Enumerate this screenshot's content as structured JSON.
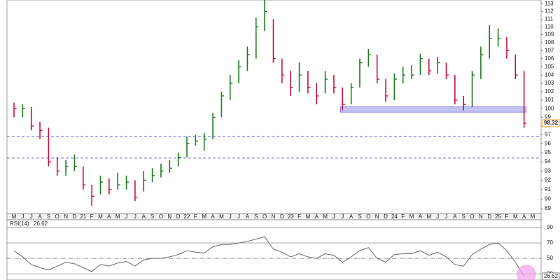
{
  "chart_data": [
    {
      "type": "ohlc",
      "log": true,
      "categories": [
        "M",
        "J",
        "J",
        "A",
        "S",
        "O",
        "N",
        "D",
        "21",
        "F",
        "M",
        "A",
        "M",
        "J",
        "J",
        "A",
        "S",
        "O",
        "N",
        "D",
        "22",
        "F",
        "M",
        "A",
        "M",
        "J",
        "J",
        "A",
        "S",
        "O",
        "N",
        "D",
        "23",
        "F",
        "M",
        "A",
        "M",
        "J",
        "J",
        "A",
        "S",
        "O",
        "N",
        "D",
        "24",
        "F",
        "M",
        "A",
        "M",
        "J",
        "J",
        "A",
        "S",
        "O",
        "N",
        "D",
        "25",
        "F",
        "M",
        "A",
        "M"
      ],
      "high": [
        100.7,
        100.5,
        100.2,
        98.5,
        97.8,
        94.5,
        94.2,
        94.8,
        93.5,
        91.5,
        92.5,
        92.2,
        92.8,
        92.5,
        92,
        93,
        93.3,
        93.8,
        94.2,
        95,
        96.8,
        97,
        97.2,
        99.5,
        102,
        104,
        105.8,
        107.5,
        111.2,
        113.5,
        111,
        106,
        104.5,
        105.5,
        104.5,
        103,
        104.5,
        104,
        102.5,
        103,
        106,
        107.2,
        106.5,
        103.5,
        104.2,
        105,
        105.2,
        106.6,
        106,
        106.2,
        105.5,
        104,
        101.5,
        104.5,
        107.5,
        110.2,
        109.8,
        108.7,
        106.5,
        104.5,
        null
      ],
      "low": [
        99,
        99,
        97.5,
        96.5,
        93.5,
        92.5,
        92.5,
        93,
        91,
        89.3,
        90.5,
        90.5,
        91,
        91,
        89.8,
        90.8,
        91.8,
        92.3,
        92.8,
        93.5,
        94.5,
        95.8,
        95.2,
        96.5,
        99,
        101,
        103,
        104.5,
        106,
        109.5,
        105.5,
        103,
        101.5,
        102,
        101.8,
        100.5,
        101.8,
        101.8,
        99.8,
        100.5,
        102.5,
        105,
        103,
        100.8,
        101,
        103,
        103.5,
        104,
        104,
        104.2,
        103.5,
        100.5,
        99.8,
        100.2,
        103.5,
        106,
        107.5,
        106,
        103.5,
        97.8,
        null
      ],
      "close": [
        100,
        100,
        98,
        97.5,
        94,
        93,
        93.5,
        93.5,
        91.5,
        90.3,
        91.8,
        91,
        91.5,
        91.8,
        90.2,
        92,
        92.5,
        93,
        93.3,
        94.5,
        96,
        96.3,
        96.5,
        99,
        101.5,
        103,
        105,
        106.5,
        110,
        112,
        106,
        104,
        102.5,
        104,
        102.5,
        101.5,
        103.5,
        102.5,
        100.5,
        102.5,
        105.5,
        106.5,
        103.5,
        101.5,
        103.5,
        104,
        104,
        106,
        104.5,
        105.5,
        104,
        101,
        100.5,
        104,
        106.5,
        108.5,
        108.5,
        107,
        104,
        98.32,
        null
      ],
      "up_color": "#1f7a1f",
      "down_color": "#c8103c",
      "last_color": "#f0a020",
      "ylim": [
        88.5,
        113.5
      ],
      "yticks": [
        89,
        90,
        91,
        92,
        93,
        94,
        95,
        96,
        97,
        98,
        99,
        100,
        101,
        102,
        103,
        104,
        105,
        106,
        107,
        108,
        109,
        110,
        111,
        112,
        113
      ],
      "levels": [
        96.8,
        94.4
      ],
      "level_color": "#3030c0",
      "zone": [
        99.6,
        100.2
      ],
      "zone_color": "#b8b8f4"
    },
    {
      "type": "line",
      "series": [
        {
          "name": "RSI(14)",
          "color": "#6a6a6a",
          "values": [
            60,
            52,
            42,
            38,
            35,
            40,
            45,
            43,
            38,
            33,
            42,
            40,
            44,
            46,
            40,
            48,
            50,
            50,
            52,
            55,
            60,
            58,
            57,
            65,
            68,
            68,
            70,
            72,
            75,
            78,
            62,
            58,
            52,
            56,
            52,
            50,
            56,
            54,
            45,
            52,
            60,
            64,
            50,
            45,
            55,
            56,
            56,
            60,
            54,
            58,
            52,
            42,
            40,
            55,
            62,
            68,
            70,
            60,
            45,
            26.62,
            null
          ]
        }
      ],
      "ylim": [
        22,
        100
      ],
      "yticks": [
        30,
        50,
        70,
        90
      ]
    }
  ]
}
